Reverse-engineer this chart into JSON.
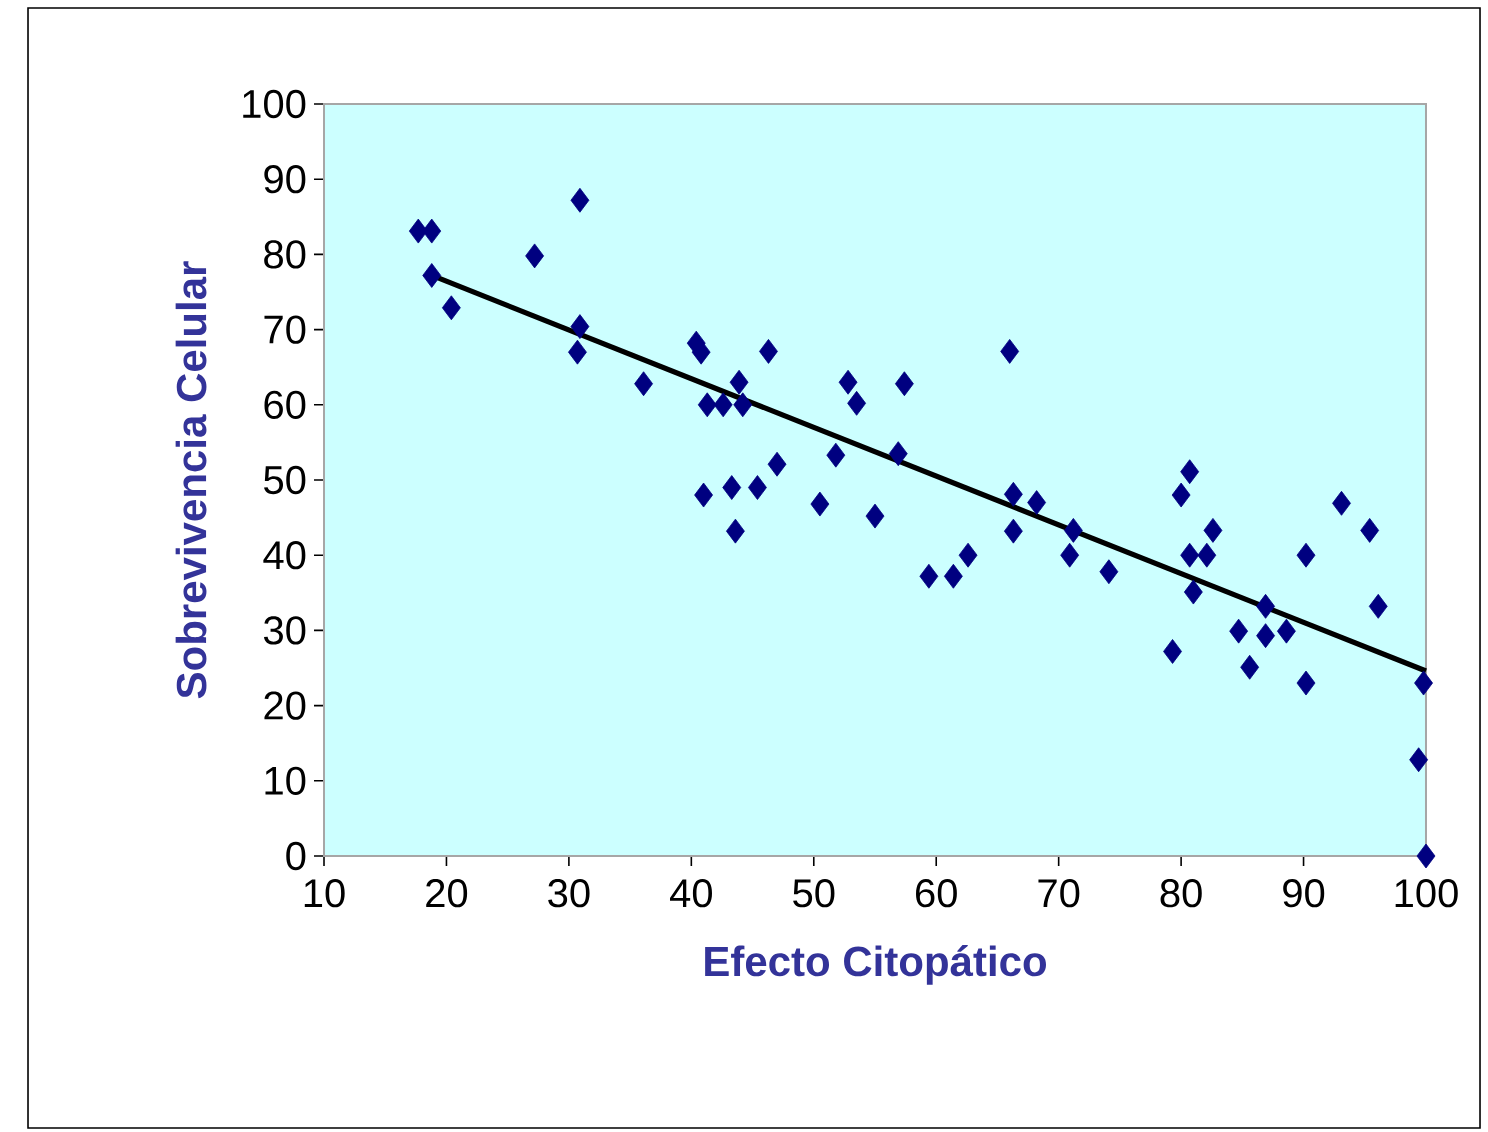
{
  "chart_data": {
    "type": "scatter",
    "xlabel": "Efecto Citopático",
    "ylabel": "Sobrevivencia Celular",
    "xlim": [
      10,
      100
    ],
    "ylim": [
      0,
      100
    ],
    "xticks": [
      10,
      20,
      30,
      40,
      50,
      60,
      70,
      80,
      90,
      100
    ],
    "yticks": [
      0,
      10,
      20,
      30,
      40,
      50,
      60,
      70,
      80,
      90,
      100
    ],
    "series": [
      {
        "color": "#000080",
        "marker": "diamond",
        "x": [
          17.7,
          18.8,
          18.8,
          20.4,
          27.2,
          30.9,
          30.9,
          30.7,
          36.1,
          40.4,
          40.8,
          41.3,
          42.6,
          43.9,
          44.2,
          46.3,
          41.0,
          43.3,
          43.6,
          45.4,
          47.0,
          50.5,
          51.8,
          52.8,
          53.5,
          55.0,
          56.9,
          57.4,
          59.4,
          61.4,
          62.6,
          66.0,
          66.3,
          68.2,
          66.3,
          70.9,
          71.2,
          74.1,
          79.3,
          80.0,
          80.7,
          80.7,
          81.0,
          82.1,
          82.6,
          84.7,
          85.6,
          86.9,
          86.9,
          88.6,
          90.2,
          90.2,
          93.1,
          95.4,
          96.1,
          99.8,
          99.4,
          100
        ],
        "values": [
          83.1,
          83.1,
          77.2,
          72.9,
          79.8,
          87.2,
          70.4,
          67.0,
          62.8,
          68.2,
          67.0,
          60.0,
          60.0,
          63.0,
          60.0,
          67.1,
          48.0,
          49.0,
          43.2,
          49.0,
          52.1,
          46.8,
          53.3,
          63.0,
          60.2,
          45.2,
          53.5,
          62.8,
          37.2,
          37.2,
          40.0,
          67.1,
          48.1,
          47.0,
          43.2,
          40.0,
          43.3,
          37.8,
          27.2,
          48.0,
          51.1,
          40.0,
          35.1,
          40.0,
          43.3,
          29.9,
          25.1,
          33.2,
          29.3,
          29.9,
          40.0,
          23.0,
          46.9,
          43.3,
          33.2,
          23.0,
          12.8,
          0
        ]
      },
      {
        "type": "line",
        "marker": "none",
        "color": "#000000",
        "x": [
          18.5,
          100
        ],
        "values": [
          77.4,
          24.6
        ]
      }
    ]
  }
}
